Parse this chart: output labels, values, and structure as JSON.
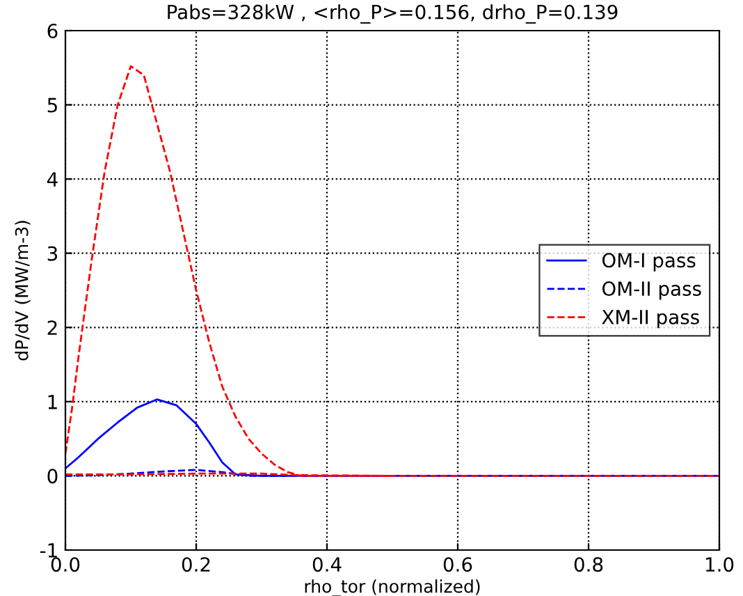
{
  "chart_data": {
    "type": "line",
    "title": "Pabs=328kW , <rho_P>=0.156, drho_P=0.139",
    "xlabel": "rho_tor (normalized)",
    "ylabel": "dP/dV (MW/m-3)",
    "xlim": [
      0,
      1
    ],
    "xticks": [
      {
        "value": 0,
        "label": "0.0"
      },
      0.2,
      0.4,
      0.6,
      0.8,
      {
        "value": 1,
        "label": "1.0"
      }
    ],
    "ylim": [
      -1,
      6
    ],
    "yticks": [
      -1,
      0,
      1,
      2,
      3,
      4,
      5,
      6
    ],
    "grid": true,
    "legend": "right",
    "series": [
      {
        "name": "OM-I pass",
        "color": "#0000ff",
        "line_style": "solid",
        "x": [
          0,
          0.02,
          0.05,
          0.08,
          0.11,
          0.14,
          0.17,
          0.2,
          0.22,
          0.24,
          0.26,
          0.3,
          0.4,
          0.6,
          0.8,
          1.0
        ],
        "values": [
          0.1,
          0.25,
          0.5,
          0.72,
          0.92,
          1.03,
          0.95,
          0.7,
          0.45,
          0.18,
          0.02,
          0.0,
          0.0,
          0.0,
          0.0,
          0.0
        ]
      },
      {
        "name": "OM-II pass",
        "color": "#0000ff",
        "line_style": "dashed",
        "x": [
          0,
          0.05,
          0.1,
          0.15,
          0.2,
          0.24,
          0.28,
          0.35,
          0.5
        ],
        "values": [
          0.0,
          0.01,
          0.03,
          0.06,
          0.08,
          0.05,
          0.0,
          0.0,
          0.0
        ]
      },
      {
        "name": "XM-II pass",
        "color": "#ff0000",
        "line_style": "dashed",
        "x": [
          0,
          0.01,
          0.02,
          0.04,
          0.06,
          0.08,
          0.1,
          0.12,
          0.14,
          0.16,
          0.18,
          0.2,
          0.22,
          0.24,
          0.26,
          0.28,
          0.3,
          0.32,
          0.34,
          0.36,
          0.4,
          0.6,
          0.8,
          1.0
        ],
        "values": [
          0.3,
          0.9,
          1.6,
          2.9,
          4.1,
          5.0,
          5.52,
          5.4,
          4.75,
          4.1,
          3.3,
          2.5,
          1.8,
          1.2,
          0.8,
          0.5,
          0.3,
          0.15,
          0.05,
          0.0,
          0.0,
          0.0,
          0.0,
          0.0
        ]
      },
      {
        "color": "#ff0000",
        "line_style": "dashed",
        "x": [
          0,
          0.1,
          0.2,
          0.3,
          0.35,
          0.5
        ],
        "values": [
          0.02,
          0.02,
          0.03,
          0.03,
          0.01,
          0.0
        ]
      }
    ]
  }
}
